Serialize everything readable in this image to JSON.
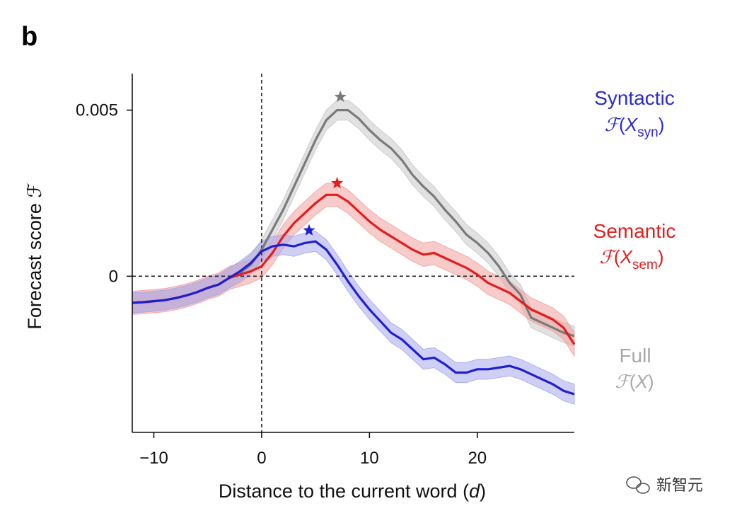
{
  "panel_label": "b",
  "watermark": {
    "text": "新智元",
    "icon": "wechat-icon"
  },
  "chart_data": {
    "type": "line",
    "xlabel": "Distance to the current word (d)",
    "xlabel_parts": [
      "Distance to the current word (",
      "d",
      ")"
    ],
    "ylabel": "Forecast score ℱ",
    "xlim": [
      -12,
      29
    ],
    "ylim": [
      -0.0047,
      0.0061
    ],
    "x_ticks": [
      -10,
      0,
      10,
      20
    ],
    "x_tick_labels": [
      "−10",
      "0",
      "10",
      "20"
    ],
    "y_ticks": [
      0,
      0.005
    ],
    "y_tick_labels": [
      "0",
      "0.005"
    ],
    "reference_lines": {
      "x": 0,
      "y": 0,
      "style": "dashed"
    },
    "x": [
      -12,
      -11,
      -10,
      -9,
      -8,
      -7,
      -6,
      -5,
      -4,
      -3,
      -2,
      -1,
      0,
      1,
      2,
      3,
      4,
      5,
      6,
      7,
      8,
      9,
      10,
      11,
      12,
      13,
      14,
      15,
      16,
      17,
      18,
      19,
      20,
      21,
      22,
      23,
      24,
      25,
      26,
      27,
      28,
      29
    ],
    "series": [
      {
        "name": "Full",
        "formula": "ℱ(X)",
        "color": "#7a7a7a",
        "band_color": "#c8c8c8",
        "legend_color": "#a8a8a8",
        "values": [
          -0.0008,
          -0.00078,
          -0.00075,
          -0.00072,
          -0.00066,
          -0.00058,
          -0.00048,
          -0.00035,
          -0.00025,
          -5e-05,
          0.0001,
          0.00035,
          0.0008,
          0.0014,
          0.002,
          0.0027,
          0.0034,
          0.0041,
          0.0047,
          0.005,
          0.005,
          0.00475,
          0.0044,
          0.0041,
          0.00385,
          0.0035,
          0.00305,
          0.0027,
          0.0024,
          0.002,
          0.00165,
          0.00125,
          0.001,
          0.0007,
          0.0003,
          -0.0002,
          -0.00055,
          -0.00125,
          -0.0014,
          -0.00155,
          -0.0017,
          -0.0018
        ],
        "band_halfwidth": 0.0003,
        "peak": {
          "x": 7.3,
          "y": 0.0054
        }
      },
      {
        "name": "Semantic",
        "formula": "ℱ(X_sem)",
        "formula_base": "X",
        "formula_sub": "sem",
        "color": "#e41c1c",
        "band_color": "#f2a0a0",
        "legend_color": "#e41c1c",
        "values": [
          -0.0008,
          -0.00078,
          -0.00075,
          -0.00072,
          -0.00066,
          -0.00058,
          -0.00048,
          -0.00035,
          -0.00025,
          -5e-05,
          5e-05,
          0.00015,
          0.0003,
          0.0007,
          0.0012,
          0.0016,
          0.0019,
          0.0022,
          0.00245,
          0.00245,
          0.00225,
          0.00195,
          0.00165,
          0.0014,
          0.0012,
          0.001,
          0.0008,
          0.00065,
          0.0007,
          0.00055,
          0.0004,
          0.00025,
          5e-05,
          -0.0002,
          -0.00035,
          -0.0005,
          -0.00075,
          -0.001,
          -0.00115,
          -0.0013,
          -0.00155,
          -0.00205
        ],
        "band_halfwidth": 0.00035,
        "peak": {
          "x": 7.0,
          "y": 0.0028
        }
      },
      {
        "name": "Syntactic",
        "formula": "ℱ(X_syn)",
        "formula_base": "X",
        "formula_sub": "syn",
        "color": "#1f1fd0",
        "band_color": "#a8a8ee",
        "legend_color": "#2a2ad4",
        "values": [
          -0.0008,
          -0.00078,
          -0.00075,
          -0.00072,
          -0.00066,
          -0.00058,
          -0.00048,
          -0.00035,
          -0.00025,
          -5e-05,
          0.00015,
          0.0004,
          0.00075,
          0.0009,
          0.00095,
          0.0009,
          0.001,
          0.00105,
          0.0008,
          0.00035,
          -0.00015,
          -0.0006,
          -0.001,
          -0.00135,
          -0.0017,
          -0.0019,
          -0.0022,
          -0.0025,
          -0.00245,
          -0.00265,
          -0.0029,
          -0.0029,
          -0.0028,
          -0.0028,
          -0.00275,
          -0.0027,
          -0.0028,
          -0.00295,
          -0.0031,
          -0.00325,
          -0.00345,
          -0.00355
        ],
        "band_halfwidth": 0.0003,
        "peak": {
          "x": 4.4,
          "y": 0.00138
        }
      }
    ]
  }
}
